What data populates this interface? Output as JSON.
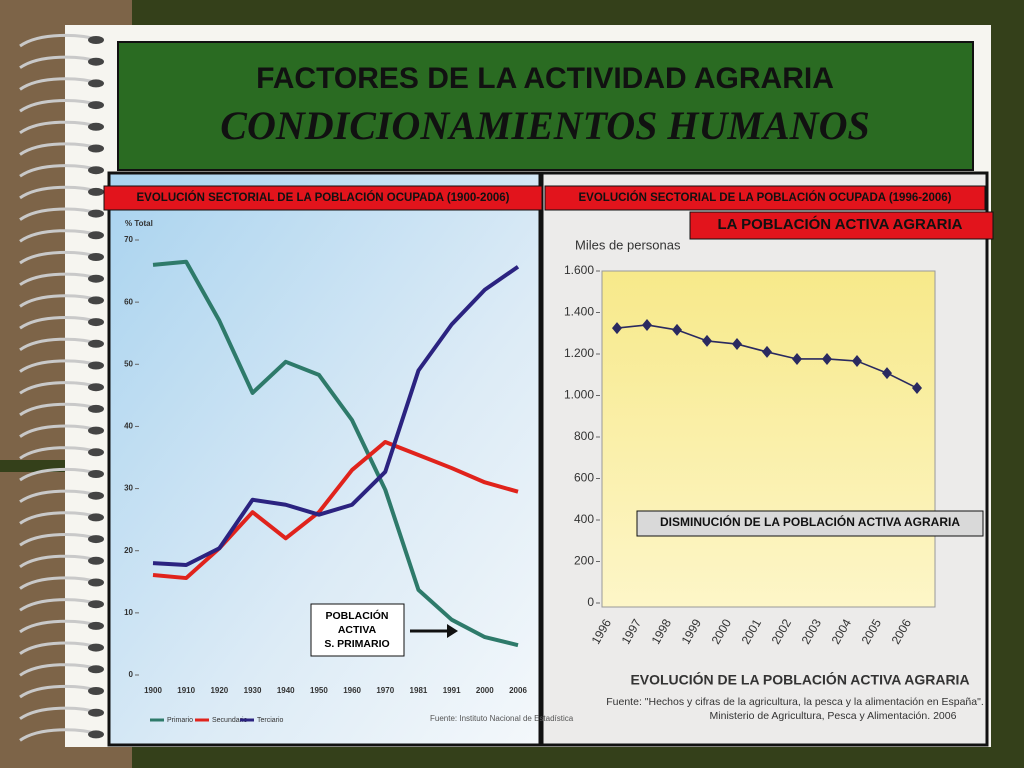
{
  "slide": {
    "title": "FACTORES DE LA ACTIVIDAD AGRARIA",
    "subtitle": "CONDICIONAMIENTOS HUMANOS",
    "label_left": "EVOLUCIÓN SECTORIAL DE LA POBLACIÓN OCUPADA (1900-2006)",
    "label_right": "EVOLUCIÓN SECTORIAL DE LA POBLACIÓN OCUPADA (1996-2006)",
    "label_agraria": "LA POBLACIÓN ACTIVA AGRARIA",
    "label_disminucion": "DISMINUCIÓN DE LA POBLACIÓN ACTIVA AGRARIA",
    "callout": [
      "POBLACIÓN",
      "ACTIVA",
      "S. PRIMARIO"
    ]
  },
  "chart_data": [
    {
      "type": "line",
      "y_label": "% Total",
      "source": "Fuente: Instituto Nacional de Estadística",
      "categories": [
        "1900",
        "1910",
        "1920",
        "1930",
        "1940",
        "1950",
        "1960",
        "1970",
        "1981",
        "1991",
        "2000",
        "2006"
      ],
      "series": [
        {
          "name": "Primario",
          "color": "#2e7a6a",
          "values": [
            66,
            66.5,
            57,
            45.4,
            50.4,
            48.3,
            41,
            29.8,
            13.7,
            8.9,
            6.1,
            4.8
          ]
        },
        {
          "name": "Secundario",
          "color": "#e0231c",
          "values": [
            16.1,
            15.6,
            20.4,
            26.2,
            22,
            26.2,
            33,
            37.5,
            35.4,
            33.3,
            31,
            29.5
          ]
        },
        {
          "name": "Terciario",
          "color": "#2b2380",
          "values": [
            18,
            17.7,
            20.4,
            28.2,
            27.4,
            25.8,
            27.4,
            32.7,
            49,
            56.4,
            62,
            65.7
          ]
        }
      ],
      "ylim": [
        0,
        70
      ],
      "yticks": [
        0,
        10,
        20,
        30,
        40,
        50,
        60,
        70
      ]
    },
    {
      "type": "line",
      "title": "EVOLUCIÓN DE LA POBLACIÓN ACTIVA AGRARIA",
      "y_label": "Miles de personas",
      "source": [
        "Fuente: \"Hechos y cifras de la agricultura, la pesca y la alimentación en España\".",
        "Ministerio de Agricultura, Pesca y Alimentación. 2006"
      ],
      "categories": [
        "1996",
        "1997",
        "1998",
        "1999",
        "2000",
        "2001",
        "2002",
        "2003",
        "2004",
        "2005",
        "2006"
      ],
      "series": [
        {
          "name": "Población activa agraria",
          "color": "#2a2a60",
          "values": [
            1325,
            1340,
            1316,
            1263,
            1248,
            1210,
            1176,
            1176,
            1166,
            1108,
            1036
          ]
        }
      ],
      "ylim": [
        0,
        1600
      ],
      "yticks": [
        0,
        200,
        400,
        600,
        800,
        {
          "value": 1000,
          "label": "1.000"
        },
        {
          "value": 1200,
          "label": "1.200"
        },
        {
          "value": 1400,
          "label": "1.400"
        },
        {
          "value": 1600,
          "label": "1.600"
        }
      ]
    }
  ]
}
